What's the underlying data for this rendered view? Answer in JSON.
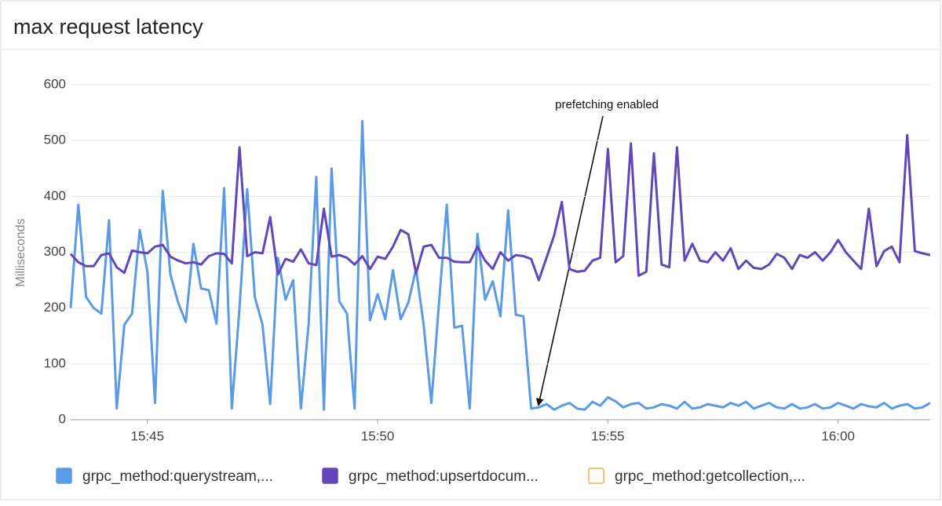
{
  "chart_data": {
    "type": "line",
    "title": "max request latency",
    "ylabel": "Milliseconds",
    "annotation": "prefetching enabled",
    "grid": true,
    "x": [
      "15:43:20",
      "15:43:30",
      "15:43:40",
      "15:43:50",
      "15:44:00",
      "15:44:10",
      "15:44:20",
      "15:44:30",
      "15:44:40",
      "15:44:50",
      "15:45:00",
      "15:45:10",
      "15:45:20",
      "15:45:30",
      "15:45:40",
      "15:45:50",
      "15:46:00",
      "15:46:10",
      "15:46:20",
      "15:46:30",
      "15:46:40",
      "15:46:50",
      "15:47:00",
      "15:47:10",
      "15:47:20",
      "15:47:30",
      "15:47:40",
      "15:47:50",
      "15:48:00",
      "15:48:10",
      "15:48:20",
      "15:48:30",
      "15:48:40",
      "15:48:50",
      "15:49:00",
      "15:49:10",
      "15:49:20",
      "15:49:30",
      "15:49:40",
      "15:49:50",
      "15:50:00",
      "15:50:10",
      "15:50:20",
      "15:50:30",
      "15:50:40",
      "15:50:50",
      "15:51:00",
      "15:51:10",
      "15:51:20",
      "15:51:30",
      "15:51:40",
      "15:51:50",
      "15:52:00",
      "15:52:10",
      "15:52:20",
      "15:52:30",
      "15:52:40",
      "15:52:50",
      "15:53:00",
      "15:53:10",
      "15:53:20",
      "15:53:30",
      "15:53:40",
      "15:53:50",
      "15:54:00",
      "15:54:10",
      "15:54:20",
      "15:54:30",
      "15:54:40",
      "15:54:50",
      "15:55:00",
      "15:55:10",
      "15:55:20",
      "15:55:30",
      "15:55:40",
      "15:55:50",
      "15:56:00",
      "15:56:10",
      "15:56:20",
      "15:56:30",
      "15:56:40",
      "15:56:50",
      "15:57:00",
      "15:57:10",
      "15:57:20",
      "15:57:30",
      "15:57:40",
      "15:57:50",
      "15:58:00",
      "15:58:10",
      "15:58:20",
      "15:58:30",
      "15:58:40",
      "15:58:50",
      "15:59:00",
      "15:59:10",
      "15:59:20",
      "15:59:30",
      "15:59:40",
      "15:59:50",
      "16:00:00",
      "16:00:10",
      "16:00:20",
      "16:00:30",
      "16:00:40",
      "16:00:50",
      "16:01:00",
      "16:01:10",
      "16:01:20",
      "16:01:30",
      "16:01:40",
      "16:01:50",
      "16:02:00"
    ],
    "xlim": [
      "15:43:20",
      "16:02:00"
    ],
    "xticks": [
      "15:45",
      "15:50",
      "15:55",
      "16:00"
    ],
    "ylim": [
      0,
      600
    ],
    "yticks": [
      0,
      100,
      200,
      300,
      400,
      500,
      600
    ],
    "series": [
      {
        "name": "grpc_method:querystream,...",
        "color": "#5b9be6",
        "values": [
          200,
          385,
          220,
          200,
          190,
          357,
          20,
          170,
          190,
          340,
          265,
          30,
          410,
          260,
          210,
          175,
          315,
          235,
          232,
          172,
          415,
          20,
          200,
          413,
          220,
          170,
          28,
          290,
          215,
          250,
          20,
          170,
          435,
          18,
          450,
          212,
          190,
          20,
          535,
          178,
          225,
          180,
          268,
          180,
          210,
          270,
          170,
          30,
          210,
          385,
          165,
          168,
          20,
          333,
          215,
          248,
          185,
          375,
          188,
          185,
          20,
          22,
          28,
          18,
          25,
          30,
          20,
          18,
          32,
          25,
          40,
          33,
          22,
          28,
          30,
          20,
          22,
          28,
          25,
          20,
          32,
          20,
          22,
          28,
          25,
          22,
          30,
          25,
          32,
          20,
          25,
          30,
          22,
          20,
          28,
          20,
          22,
          28,
          20,
          22,
          30,
          25,
          20,
          28,
          24,
          22,
          30,
          20,
          25,
          28,
          20,
          22,
          30
        ]
      },
      {
        "name": "grpc_method:upsertdocum...",
        "color": "#6247b8",
        "values": [
          297,
          282,
          275,
          275,
          295,
          298,
          273,
          263,
          303,
          300,
          298,
          310,
          313,
          292,
          285,
          280,
          282,
          278,
          293,
          298,
          297,
          280,
          488,
          293,
          300,
          298,
          363,
          260,
          288,
          283,
          305,
          280,
          277,
          378,
          292,
          295,
          290,
          278,
          293,
          270,
          292,
          288,
          310,
          340,
          332,
          262,
          310,
          313,
          290,
          290,
          283,
          282,
          282,
          310,
          285,
          270,
          300,
          285,
          295,
          293,
          288,
          250,
          290,
          330,
          390,
          270,
          265,
          267,
          285,
          290,
          485,
          282,
          293,
          495,
          258,
          265,
          477,
          278,
          273,
          488,
          285,
          315,
          285,
          282,
          300,
          285,
          307,
          270,
          285,
          272,
          270,
          278,
          297,
          290,
          270,
          295,
          290,
          300,
          285,
          300,
          322,
          300,
          285,
          270,
          378,
          275,
          302,
          310,
          282,
          510,
          302,
          298,
          295
        ]
      },
      {
        "name": "grpc_method:getcollection,...",
        "color": "#e8b94a",
        "values": [
          null,
          null,
          null,
          null,
          null,
          null,
          null,
          null,
          null,
          null,
          null,
          null,
          null,
          null,
          null,
          null,
          null,
          null,
          null,
          null,
          null,
          null,
          null,
          null,
          null,
          null,
          null,
          null,
          null,
          null,
          null,
          null,
          null,
          null,
          null,
          null,
          null,
          null,
          null,
          null,
          null,
          null,
          null,
          null,
          null,
          null,
          null,
          null,
          null,
          null,
          null,
          null,
          null,
          null,
          null,
          null,
          null,
          null,
          null,
          null,
          null,
          null,
          null,
          null,
          null,
          null,
          null,
          null,
          null,
          null,
          null,
          null,
          null,
          null,
          null,
          null,
          null,
          null,
          null,
          null,
          null,
          null,
          null,
          null,
          null,
          null,
          null,
          null,
          null,
          null,
          null,
          null,
          null,
          null,
          null,
          null,
          null,
          null,
          null,
          null,
          null,
          null,
          null,
          null,
          null,
          null,
          null,
          null,
          null,
          null,
          null,
          null,
          null
        ]
      }
    ]
  }
}
